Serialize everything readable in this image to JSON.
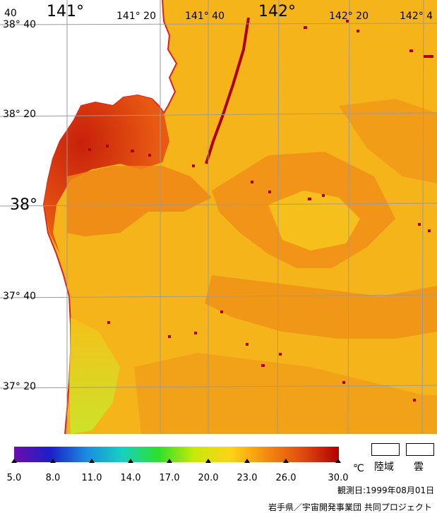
{
  "map": {
    "lon_labels": [
      "141°",
      "141° 20",
      "141° 40",
      "142°",
      "142° 20",
      "142° 4"
    ],
    "lat_labels": [
      "38° 40",
      "38° 20",
      "38°",
      "37° 40",
      "37° 20"
    ],
    "corner_label": "40"
  },
  "legend": {
    "ticks": [
      "5.0",
      "8.0",
      "11.0",
      "14.0",
      "17.0",
      "20.0",
      "23.0",
      "26.0",
      "30.0"
    ],
    "unit": "℃",
    "land_label": "陸域",
    "cloud_label": "雲",
    "colors": [
      "#6a0dad",
      "#1d1fc7",
      "#1a8be0",
      "#18d0c0",
      "#2ee02a",
      "#c8e80a",
      "#ffd21a",
      "#f48a10",
      "#e04a10",
      "#b00000"
    ]
  },
  "footer": {
    "observation_date": "観測日:1999年08月01日",
    "credit": "岩手県／宇宙開発事業団 共同プロジェクト"
  }
}
